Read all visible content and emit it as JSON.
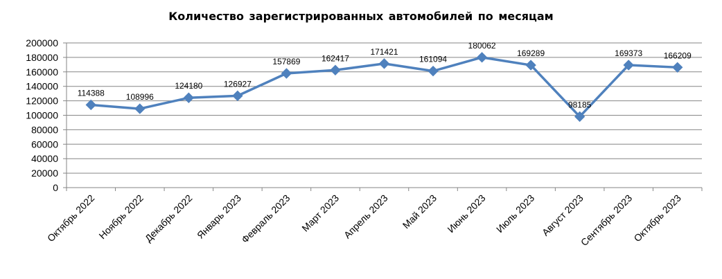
{
  "chart_data": {
    "type": "line",
    "title": "Количество зарегистрированных  автомобилей  по месяцам",
    "xlabel": "",
    "ylabel": "",
    "ylim": [
      0,
      200000
    ],
    "ytick_step": 20000,
    "grid": true,
    "legend": "none",
    "categories": [
      "Октябрь 2022",
      "Ноябрь 2022",
      "Декабрь 2022",
      "Январь 2023",
      "Февраль 2023",
      "Март 2023",
      "Апрель 2023",
      "Май 2023",
      "Июнь 2023",
      "Июль 2023",
      "Август 2023",
      "Сентябрь 2023",
      "Октябрь 2023"
    ],
    "series": [
      {
        "color": "#4F81BD",
        "marker": "diamond",
        "values": [
          114388,
          108996,
          124180,
          126927,
          157869,
          162417,
          171421,
          161094,
          180062,
          169289,
          98185,
          169373,
          166209
        ],
        "labels": [
          "114388",
          "108996",
          "124180",
          "126927",
          "157869",
          "162417",
          "171421",
          "161094",
          "180062",
          "169289",
          "98185",
          "169373",
          "166209"
        ]
      }
    ]
  }
}
